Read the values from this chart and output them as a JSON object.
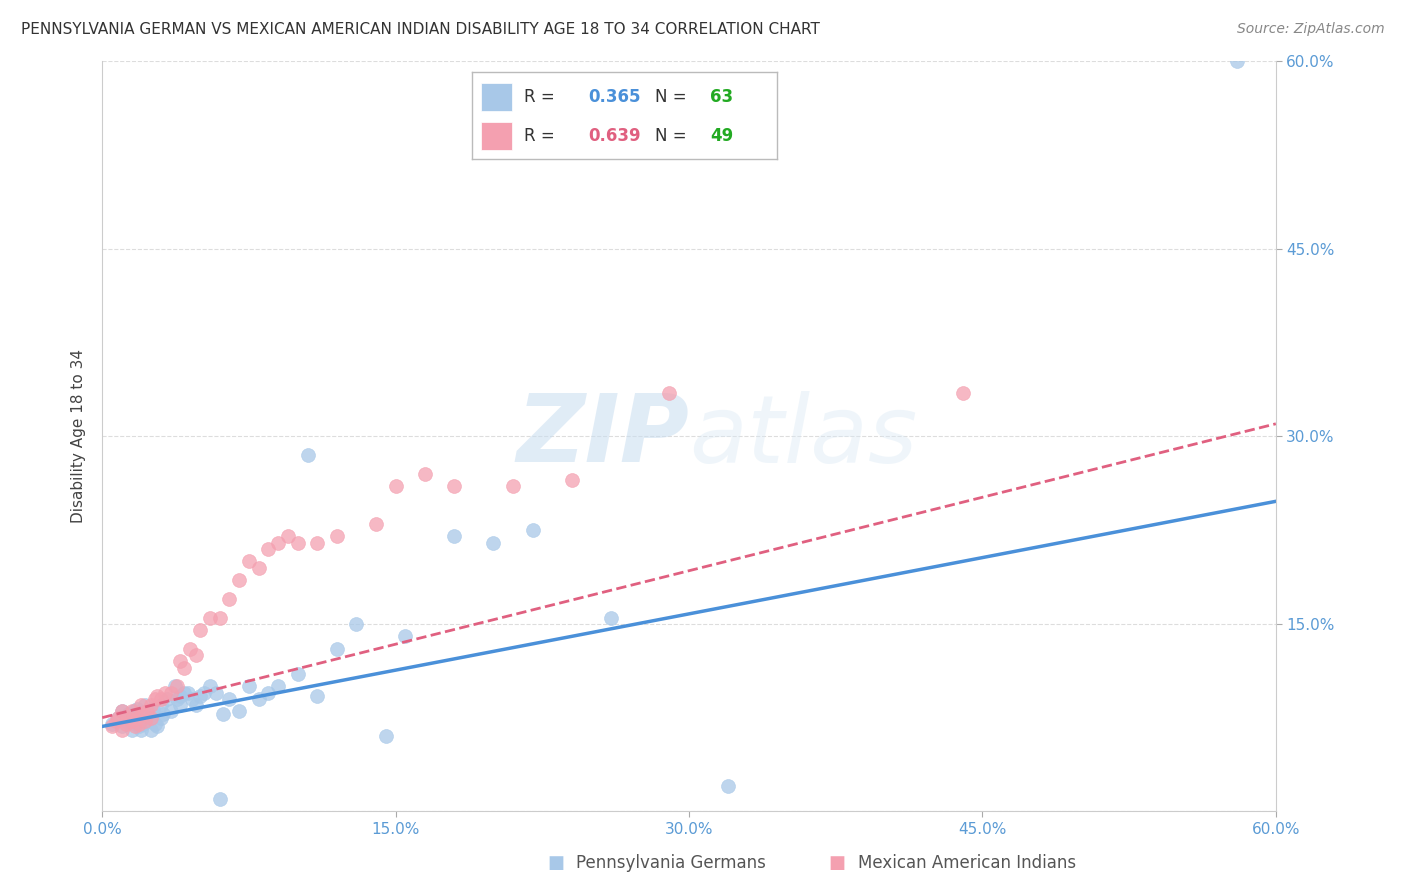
{
  "title": "PENNSYLVANIA GERMAN VS MEXICAN AMERICAN INDIAN DISABILITY AGE 18 TO 34 CORRELATION CHART",
  "source": "Source: ZipAtlas.com",
  "ylabel": "Disability Age 18 to 34",
  "xlim": [
    0.0,
    0.6
  ],
  "ylim": [
    0.0,
    0.6
  ],
  "blue_R": 0.365,
  "blue_N": 63,
  "pink_R": 0.639,
  "pink_N": 49,
  "blue_color": "#a8c8e8",
  "pink_color": "#f4a0b0",
  "blue_line_color": "#4a90d9",
  "pink_line_color": "#e06080",
  "grid_color": "#dddddd",
  "watermark_zip": "ZIP",
  "watermark_atlas": "atlas",
  "blue_scatter_x": [
    0.005,
    0.008,
    0.01,
    0.01,
    0.012,
    0.013,
    0.015,
    0.015,
    0.016,
    0.017,
    0.018,
    0.018,
    0.019,
    0.02,
    0.02,
    0.021,
    0.022,
    0.022,
    0.023,
    0.024,
    0.025,
    0.025,
    0.026,
    0.027,
    0.028,
    0.03,
    0.03,
    0.031,
    0.033,
    0.035,
    0.037,
    0.038,
    0.04,
    0.04,
    0.042,
    0.044,
    0.046,
    0.048,
    0.05,
    0.052,
    0.055,
    0.058,
    0.06,
    0.062,
    0.065,
    0.07,
    0.075,
    0.08,
    0.085,
    0.09,
    0.1,
    0.105,
    0.11,
    0.12,
    0.13,
    0.145,
    0.155,
    0.18,
    0.2,
    0.22,
    0.26,
    0.32,
    0.58
  ],
  "blue_scatter_y": [
    0.07,
    0.075,
    0.068,
    0.08,
    0.072,
    0.078,
    0.065,
    0.075,
    0.08,
    0.07,
    0.082,
    0.072,
    0.068,
    0.065,
    0.075,
    0.07,
    0.078,
    0.085,
    0.072,
    0.08,
    0.065,
    0.075,
    0.082,
    0.07,
    0.068,
    0.075,
    0.085,
    0.078,
    0.09,
    0.08,
    0.1,
    0.09,
    0.092,
    0.085,
    0.095,
    0.095,
    0.09,
    0.085,
    0.092,
    0.095,
    0.1,
    0.095,
    0.01,
    0.078,
    0.09,
    0.08,
    0.1,
    0.09,
    0.095,
    0.1,
    0.11,
    0.285,
    0.092,
    0.13,
    0.15,
    0.06,
    0.14,
    0.22,
    0.215,
    0.225,
    0.155,
    0.02,
    0.6
  ],
  "pink_scatter_x": [
    0.005,
    0.007,
    0.008,
    0.01,
    0.01,
    0.012,
    0.013,
    0.015,
    0.015,
    0.017,
    0.018,
    0.019,
    0.02,
    0.02,
    0.022,
    0.023,
    0.025,
    0.025,
    0.027,
    0.028,
    0.03,
    0.032,
    0.035,
    0.038,
    0.04,
    0.042,
    0.045,
    0.048,
    0.05,
    0.055,
    0.06,
    0.065,
    0.07,
    0.075,
    0.08,
    0.085,
    0.09,
    0.095,
    0.1,
    0.11,
    0.12,
    0.14,
    0.15,
    0.165,
    0.18,
    0.21,
    0.24,
    0.29,
    0.44
  ],
  "pink_scatter_y": [
    0.068,
    0.072,
    0.075,
    0.065,
    0.08,
    0.07,
    0.075,
    0.072,
    0.08,
    0.068,
    0.075,
    0.07,
    0.078,
    0.085,
    0.072,
    0.08,
    0.075,
    0.085,
    0.09,
    0.092,
    0.09,
    0.095,
    0.095,
    0.1,
    0.12,
    0.115,
    0.13,
    0.125,
    0.145,
    0.155,
    0.155,
    0.17,
    0.185,
    0.2,
    0.195,
    0.21,
    0.215,
    0.22,
    0.215,
    0.215,
    0.22,
    0.23,
    0.26,
    0.27,
    0.26,
    0.26,
    0.265,
    0.335,
    0.335
  ],
  "legend_label_blue": "Pennsylvania Germans",
  "legend_label_pink": "Mexican American Indians",
  "background_color": "#ffffff",
  "title_fontsize": 11,
  "axis_label_fontsize": 11,
  "tick_fontsize": 11,
  "legend_fontsize": 12,
  "source_fontsize": 10,
  "blue_trendline_start_y": 0.068,
  "blue_trendline_end_y": 0.248,
  "pink_trendline_start_y": 0.075,
  "pink_trendline_end_y": 0.31,
  "right_tick_color": "#5b9bd5",
  "bottom_tick_color": "#5b9bd5",
  "N_color": "#22aa22"
}
